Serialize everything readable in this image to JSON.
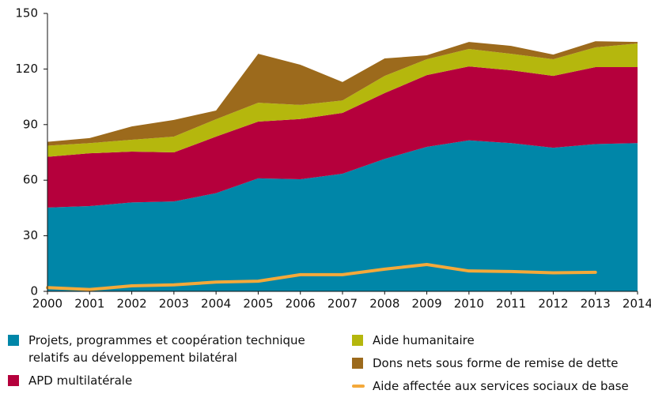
{
  "chart_data": {
    "type": "stacked_area",
    "x": [
      2000,
      2001,
      2002,
      2003,
      2004,
      2005,
      2006,
      2007,
      2008,
      2009,
      2010,
      2011,
      2012,
      2013,
      2014
    ],
    "xlim": [
      2000,
      2014
    ],
    "xticks": [
      2000,
      2001,
      2002,
      2003,
      2004,
      2005,
      2006,
      2007,
      2008,
      2009,
      2010,
      2011,
      2012,
      2013,
      2014
    ],
    "ylim": [
      0,
      150
    ],
    "yticks": [
      0,
      30,
      60,
      90,
      120,
      150
    ],
    "series": [
      {
        "name": "Projets, programmes et coopération technique relatifs au développement bilatéral",
        "color": "#0086a8",
        "values": [
          45.2,
          46,
          48,
          48.5,
          53,
          61,
          60.5,
          63.5,
          71.5,
          78,
          81.5,
          80,
          77.5,
          79.5,
          80
        ]
      },
      {
        "name": "APD multilatérale",
        "color": "#b5003c",
        "values": [
          27.4,
          28.5,
          27.4,
          26.5,
          30.5,
          30.6,
          32.5,
          32.8,
          35.5,
          38.7,
          39.9,
          39.3,
          38.8,
          41.5,
          41
        ]
      },
      {
        "name": "Aide humanitaire",
        "color": "#b5b70d",
        "values": [
          6,
          5.5,
          6.4,
          8.5,
          9.4,
          10.2,
          7.6,
          6.7,
          9.3,
          8.6,
          9.4,
          8.9,
          9,
          10.7,
          12.8
        ]
      },
      {
        "name": "Dons nets sous forme de remise de dette",
        "color": "#9c6a1c",
        "values": [
          2.1,
          2.7,
          7.2,
          9,
          4.7,
          26.4,
          21.7,
          10,
          9.4,
          2.1,
          3.8,
          4.3,
          2.5,
          3.3,
          0.8
        ]
      },
      {
        "name": "Aide affectée aux services sociaux de base",
        "color": "#f4a93a",
        "kind": "line",
        "values": [
          2,
          1,
          3,
          3.5,
          5,
          5.5,
          9,
          9,
          12,
          14.5,
          11,
          10.7,
          10,
          10.3,
          null
        ]
      }
    ]
  }
}
